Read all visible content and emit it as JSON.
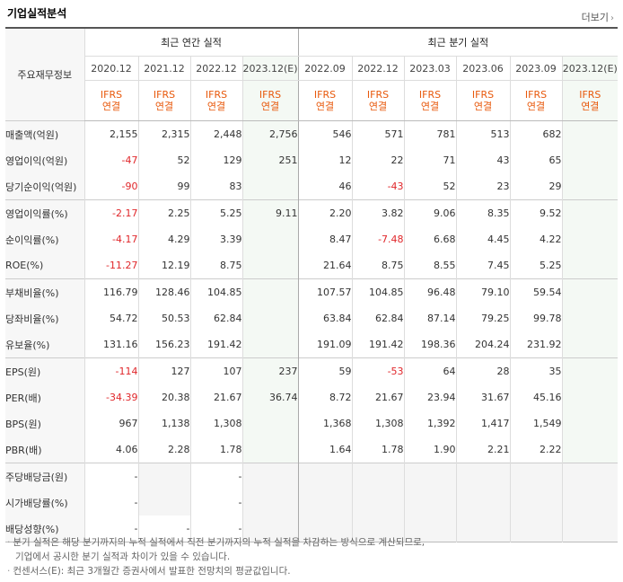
{
  "header": {
    "title": "기업실적분석",
    "more_label": "더보기"
  },
  "table": {
    "row_header": "주요재무정보",
    "group_annual": "최근 연간 실적",
    "group_quarter": "최근 분기 실적",
    "periods": [
      "2020.12",
      "2021.12",
      "2022.12",
      "2023.12(E)",
      "2022.09",
      "2022.12",
      "2023.03",
      "2023.06",
      "2023.09",
      "2023.12(E)"
    ],
    "acc_line1": "IFRS",
    "acc_line2": "연결",
    "rows": [
      {
        "label": "매출액(억원)",
        "values": [
          "2,155",
          "2,315",
          "2,448",
          "2,756",
          "546",
          "571",
          "781",
          "513",
          "682",
          ""
        ]
      },
      {
        "label": "영업이익(억원)",
        "values": [
          "-47",
          "52",
          "129",
          "251",
          "12",
          "22",
          "71",
          "43",
          "65",
          ""
        ]
      },
      {
        "label": "당기순이익(억원)",
        "values": [
          "-90",
          "99",
          "83",
          "",
          "46",
          "-43",
          "52",
          "23",
          "29",
          ""
        ]
      },
      {
        "label": "영업이익률(%)",
        "values": [
          "-2.17",
          "2.25",
          "5.25",
          "9.11",
          "2.20",
          "3.82",
          "9.06",
          "8.35",
          "9.52",
          ""
        ]
      },
      {
        "label": "순이익률(%)",
        "values": [
          "-4.17",
          "4.29",
          "3.39",
          "",
          "8.47",
          "-7.48",
          "6.68",
          "4.45",
          "4.22",
          ""
        ]
      },
      {
        "label": "ROE(%)",
        "values": [
          "-11.27",
          "12.19",
          "8.75",
          "",
          "21.64",
          "8.75",
          "8.55",
          "7.45",
          "5.25",
          ""
        ]
      },
      {
        "label": "부채비율(%)",
        "values": [
          "116.79",
          "128.46",
          "104.85",
          "",
          "107.57",
          "104.85",
          "96.48",
          "79.10",
          "59.54",
          ""
        ]
      },
      {
        "label": "당좌비율(%)",
        "values": [
          "54.72",
          "50.53",
          "62.84",
          "",
          "63.84",
          "62.84",
          "87.14",
          "79.25",
          "99.78",
          ""
        ]
      },
      {
        "label": "유보율(%)",
        "values": [
          "131.16",
          "156.23",
          "191.42",
          "",
          "191.09",
          "191.42",
          "198.36",
          "204.24",
          "231.92",
          ""
        ]
      },
      {
        "label": "EPS(원)",
        "values": [
          "-114",
          "127",
          "107",
          "237",
          "59",
          "-53",
          "64",
          "28",
          "35",
          ""
        ]
      },
      {
        "label": "PER(배)",
        "values": [
          "-34.39",
          "20.38",
          "21.67",
          "36.74",
          "8.72",
          "21.67",
          "23.94",
          "31.67",
          "45.16",
          ""
        ]
      },
      {
        "label": "BPS(원)",
        "values": [
          "967",
          "1,138",
          "1,308",
          "",
          "1,368",
          "1,308",
          "1,392",
          "1,417",
          "1,549",
          ""
        ]
      },
      {
        "label": "PBR(배)",
        "values": [
          "4.06",
          "2.28",
          "1.78",
          "",
          "1.64",
          "1.78",
          "1.90",
          "2.21",
          "2.22",
          ""
        ]
      },
      {
        "label": "주당배당금(원)",
        "values": [
          "-",
          "",
          "-",
          "",
          "",
          "",
          "",
          "",
          "",
          ""
        ]
      },
      {
        "label": "시가배당률(%)",
        "values": [
          "-",
          "",
          "-",
          "",
          "",
          "",
          "",
          "",
          "",
          ""
        ]
      },
      {
        "label": "배당성향(%)",
        "values": [
          "-",
          "-",
          "-",
          "",
          "",
          "",
          "",
          "",
          "",
          ""
        ]
      }
    ]
  },
  "notes": [
    "분기 실적은 해당 분기까지의 누적 실적에서 직전 분기까지의 누적 실적을 차감하는 방식으로 계산되므로,",
    "기업에서 공시한 분기 실적과 차이가 있을 수 있습니다.",
    "컨센서스(E): 최근 3개월간 증권사에서 발표한 전망치의 평균값입니다."
  ],
  "colors": {
    "negative": "#e0262a",
    "accounting": "#e8590c",
    "estimate_bg": "#f4f9f4"
  }
}
